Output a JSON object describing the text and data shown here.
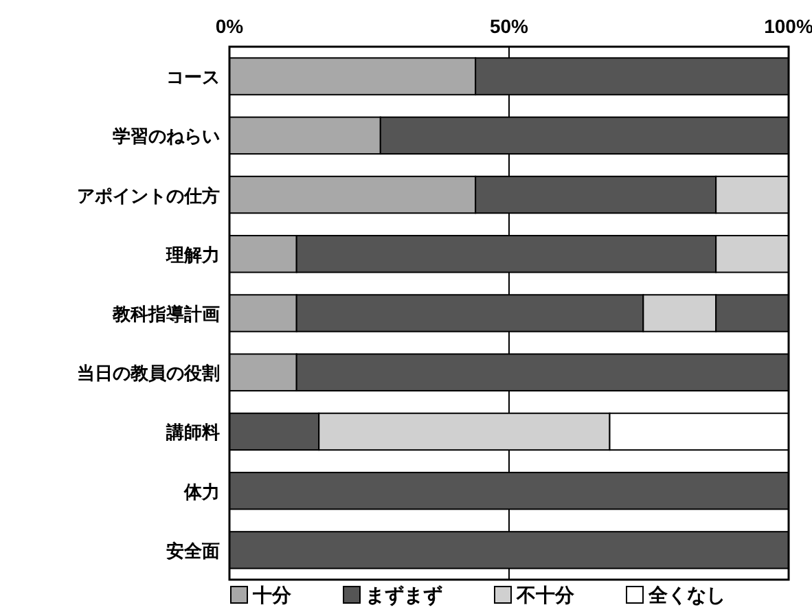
{
  "chart_data": {
    "type": "bar",
    "orientation": "horizontal",
    "stacked": true,
    "categories": [
      "コース",
      "学習のねらい",
      "アポイントの仕方",
      "理解力",
      "教科指導計画",
      "当日の教員の役割",
      "講師料",
      "体力",
      "安全面"
    ],
    "series": [
      {
        "name": "十分",
        "color": "#a8a8a8",
        "values": [
          44,
          27,
          44,
          12,
          12,
          12,
          0,
          0,
          0
        ]
      },
      {
        "name": "まずまず",
        "color": "#555555",
        "values": [
          56,
          73,
          43,
          75,
          62,
          88,
          16,
          100,
          100
        ]
      },
      {
        "name": "不十分",
        "color": "#d0d0d0",
        "values": [
          0,
          0,
          13,
          13,
          13,
          0,
          52,
          0,
          0
        ]
      },
      {
        "name": "全くなし",
        "color": "#ffffff",
        "values": [
          0,
          0,
          0,
          0,
          0,
          0,
          32,
          0,
          0
        ]
      },
      {
        "color": "#555555",
        "values": [
          0,
          0,
          0,
          0,
          13,
          0,
          0,
          0,
          0
        ]
      }
    ],
    "xlim": [
      0,
      100
    ],
    "xticks": [
      {
        "value": 0,
        "label": "0%"
      },
      {
        "value": 50,
        "label": "50%"
      },
      {
        "value": 100,
        "label": "100%"
      }
    ],
    "grid": "x",
    "legend": "bottom"
  }
}
